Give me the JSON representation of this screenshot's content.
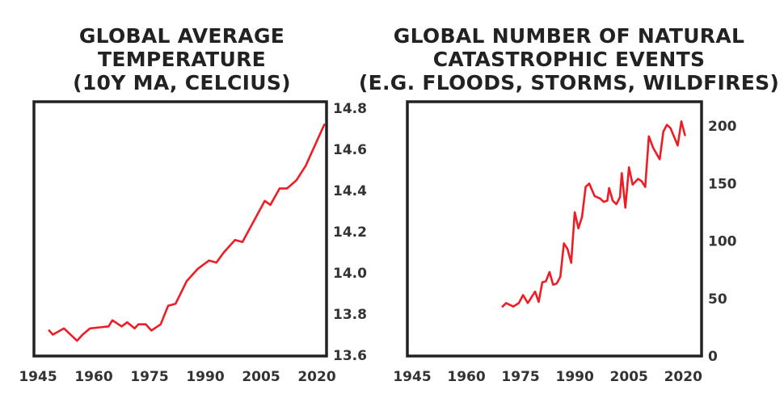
{
  "chart_data": [
    {
      "type": "line",
      "title": [
        "GLOBAL AVERAGE",
        "TEMPERATURE",
        "(10Y MA, CELCIUS)"
      ],
      "xlabel": "",
      "ylabel": "",
      "xlim": [
        1945,
        2022
      ],
      "ylim": [
        13.6,
        14.8
      ],
      "xticks": [
        1945,
        1960,
        1975,
        1990,
        2005,
        2020
      ],
      "yticks": [
        "13.6",
        "13.8",
        "14.0",
        "14.2",
        "14.4",
        "14.6",
        "14.8"
      ],
      "y_axis_side": "right",
      "grid": false,
      "color": "#ee1c25",
      "x": [
        1948,
        1949,
        1952,
        1955.5,
        1957,
        1959,
        1964,
        1965,
        1967.5,
        1969,
        1971,
        1972,
        1974,
        1975.5,
        1978,
        1980,
        1982,
        1985,
        1988,
        1991,
        1993,
        1995,
        1998,
        2000,
        2003,
        2006,
        2007.5,
        2010,
        2012,
        2014.5,
        2017,
        2022
      ],
      "y": [
        13.72,
        13.7,
        13.73,
        13.67,
        13.7,
        13.73,
        13.74,
        13.77,
        13.74,
        13.76,
        13.73,
        13.75,
        13.75,
        13.72,
        13.75,
        13.84,
        13.85,
        13.96,
        14.02,
        14.06,
        14.05,
        14.1,
        14.16,
        14.15,
        14.25,
        14.35,
        14.33,
        14.41,
        14.41,
        14.45,
        14.52,
        14.72
      ]
    },
    {
      "type": "line",
      "title": [
        "GLOBAL NUMBER OF NATURAL",
        "CATASTROPHIC EVENTS",
        "(E.G. FLOODS, STORMS, WILDFIRES)"
      ],
      "xlabel": "",
      "ylabel": "",
      "xlim": [
        1945,
        2022
      ],
      "ylim": [
        0,
        220
      ],
      "xticks": [
        1945,
        1960,
        1975,
        1990,
        2005,
        2020
      ],
      "yticks": [
        "0",
        "50",
        "100",
        "150",
        "200"
      ],
      "y_axis_side": "right",
      "grid": false,
      "color": "#ee1c25",
      "x": [
        1970,
        1971,
        1973,
        1974.5,
        1975.7,
        1977,
        1979,
        1980,
        1981,
        1982,
        1983,
        1984,
        1985,
        1986,
        1987,
        1988,
        1989,
        1990,
        1991,
        1992,
        1993,
        1994,
        1995.5,
        1997,
        1998,
        1999,
        1999.5,
        2000.5,
        2001.5,
        2002.5,
        2003,
        2004,
        2005,
        2006,
        2007.5,
        2008.5,
        2009.5,
        2010.5,
        2011.7,
        2013.5,
        2014.5,
        2015.5,
        2016.5,
        2018.5,
        2019.5,
        2020.5
      ],
      "y": [
        43,
        46,
        43,
        46,
        53,
        46,
        56,
        47,
        64,
        65,
        73,
        62,
        63,
        69,
        98,
        93,
        81,
        125,
        111,
        121,
        147,
        150,
        139,
        137,
        134,
        135,
        146,
        135,
        132,
        138,
        159,
        129,
        164,
        149,
        154,
        152,
        147,
        191,
        181,
        171,
        195,
        201,
        198,
        183,
        204,
        192
      ]
    }
  ]
}
